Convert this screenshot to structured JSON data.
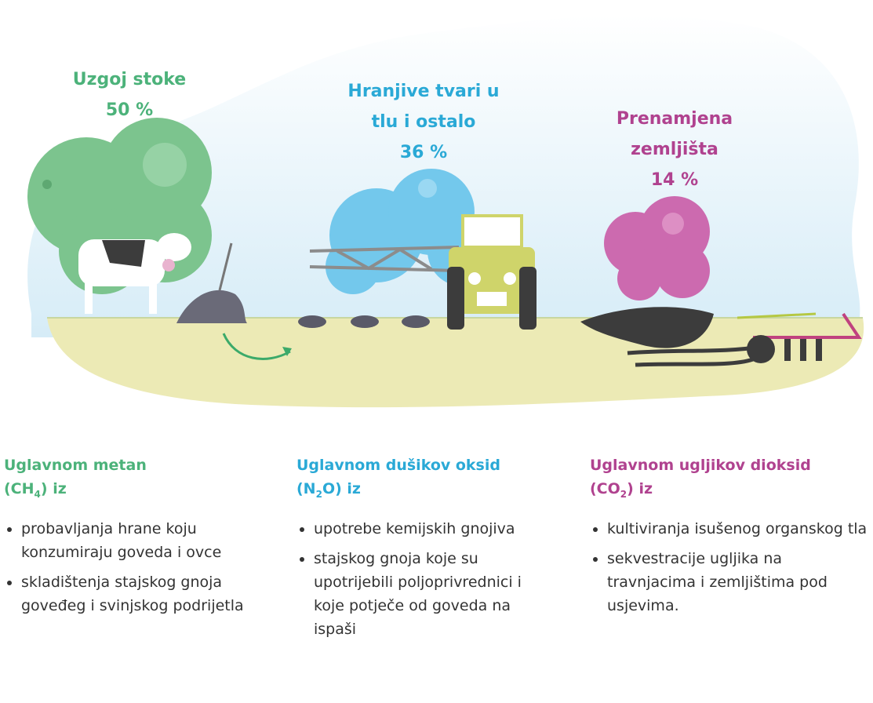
{
  "sections": [
    {
      "title_lines": [
        "Uzgoj stoke"
      ],
      "percent": "50 %",
      "heading": {
        "line1": "Uglavnom metan",
        "prefix": "(CH",
        "subscript": "4",
        "suffix": ") iz"
      },
      "bullets": [
        "probavljanja hrane koju konzumiraju goveda i ovce",
        "skladištenja stajskog gnoja goveđeg i svinjskog podrijetla"
      ]
    },
    {
      "title_lines": [
        "Hranjive tvari u",
        "tlu i ostalo"
      ],
      "percent": "36 %",
      "heading": {
        "line1": "Uglavnom dušikov oksid",
        "prefix": "(N",
        "subscript": "2",
        "suffix": "O) iz"
      },
      "bullets": [
        "upotrebe kemijskih gnojiva",
        "stajskog gnoja koje su upotrijebili poljoprivrednici i koje potječe od goveda na ispaši"
      ]
    },
    {
      "title_lines": [
        "Prenamjena",
        "zemljišta"
      ],
      "percent": "14 %",
      "heading": {
        "line1": "Uglavnom ugljikov dioksid",
        "prefix": "(CO",
        "subscript": "2",
        "suffix": ") iz"
      },
      "bullets": [
        "kultiviranja isušenog organskog tla",
        "sekvestracije ugljika na travnjacima i zemljištima pod usjevima."
      ]
    }
  ]
}
